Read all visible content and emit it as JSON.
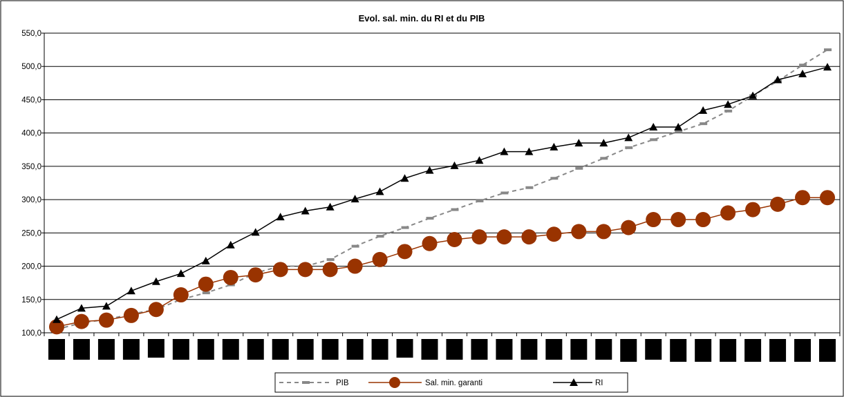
{
  "chart_data": {
    "type": "line",
    "title": "Evol. sal. min. du RI et du PIB",
    "ylim": [
      100,
      550
    ],
    "yticks": [
      100,
      150,
      200,
      250,
      300,
      350,
      400,
      450,
      500,
      550
    ],
    "ytick_labels": [
      "100,0",
      "150,0",
      "200,0",
      "250,0",
      "300,0",
      "350,0",
      "400,0",
      "450,0",
      "500,0",
      "550,0"
    ],
    "x_count": 32,
    "x_labels_note": "category labels rendered as redacted black blocks",
    "grid": true,
    "legend_position": "bottom",
    "series": [
      {
        "name": "PIB",
        "style": "dashed",
        "color": "#888888",
        "marker": "dash",
        "values": [
          105,
          115,
          120,
          128,
          135,
          150,
          160,
          172,
          190,
          200,
          200,
          210,
          230,
          245,
          258,
          272,
          285,
          298,
          310,
          318,
          332,
          347,
          362,
          378,
          390,
          402,
          414,
          433,
          456,
          478,
          502,
          525
        ]
      },
      {
        "name": "Sal. min. garanti",
        "style": "solid",
        "color": "#993300",
        "marker": "circle",
        "values": [
          109,
          117,
          119,
          126,
          135,
          157,
          173,
          183,
          187,
          195,
          195,
          195,
          200,
          210,
          222,
          234,
          240,
          244,
          244,
          244,
          248,
          252,
          252,
          258,
          270,
          270,
          270,
          280,
          285,
          293,
          303,
          303
        ]
      },
      {
        "name": "RI",
        "style": "solid",
        "color": "#000000",
        "marker": "triangle",
        "values": [
          120,
          137,
          140,
          163,
          177,
          189,
          208,
          232,
          251,
          274,
          283,
          289,
          301,
          312,
          332,
          344,
          351,
          359,
          372,
          372,
          379,
          385,
          385,
          393,
          409,
          409,
          434,
          443,
          456,
          480,
          489,
          499
        ]
      }
    ]
  }
}
